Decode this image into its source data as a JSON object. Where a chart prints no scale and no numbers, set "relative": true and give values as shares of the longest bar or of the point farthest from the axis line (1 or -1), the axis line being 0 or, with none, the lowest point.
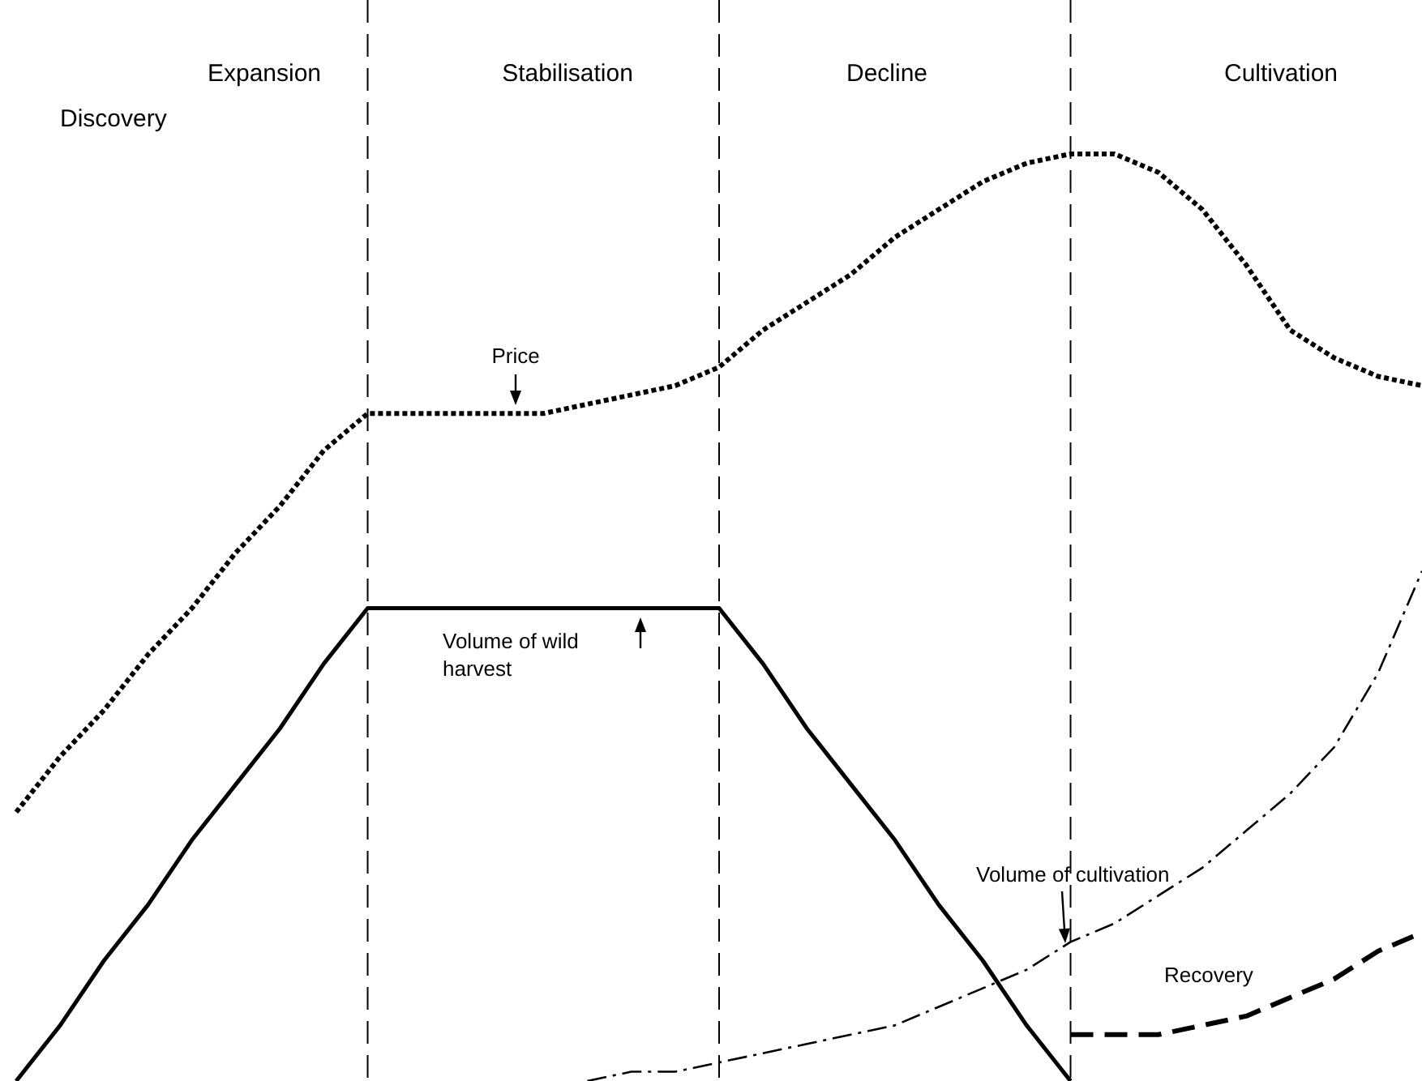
{
  "chart_data": {
    "type": "line",
    "relative": true,
    "grid": "x",
    "categories": [
      null,
      null,
      null,
      null,
      null,
      null,
      null,
      null,
      null,
      null,
      null,
      null,
      null,
      null,
      null,
      null,
      null,
      null,
      null,
      null,
      null,
      null,
      null,
      null,
      null,
      null,
      null,
      null,
      null,
      null,
      null,
      null,
      null
    ],
    "series": [
      {
        "name": "Price",
        "color": "#000000",
        "line_style": "dotted",
        "values": [
          0.29,
          0.35,
          0.4,
          0.46,
          0.51,
          0.57,
          0.62,
          0.68,
          0.72,
          0.72,
          0.72,
          0.72,
          0.72,
          0.73,
          0.74,
          0.75,
          0.77,
          0.81,
          0.84,
          0.87,
          0.91,
          0.94,
          0.97,
          0.99,
          1,
          1,
          0.98,
          0.94,
          0.88,
          0.81,
          0.78,
          0.76,
          0.75
        ]
      },
      {
        "name": "Volume of wild harvest",
        "color": "#000000",
        "line_style": "solid",
        "values": [
          0,
          0.06,
          0.13,
          0.19,
          0.26,
          0.32,
          0.38,
          0.45,
          0.51,
          0.51,
          0.51,
          0.51,
          0.51,
          0.51,
          0.51,
          0.51,
          0.51,
          0.45,
          0.38,
          0.32,
          0.26,
          0.19,
          0.13,
          0.06,
          0,
          null,
          null,
          null,
          null,
          null,
          null,
          null,
          null
        ]
      },
      {
        "name": "Volume of cultivation",
        "color": "#000000",
        "line_style": "dashdot",
        "values": [
          null,
          null,
          null,
          null,
          null,
          null,
          null,
          null,
          null,
          null,
          null,
          null,
          null,
          0,
          0.01,
          0.01,
          0.02,
          0.03,
          0.04,
          0.05,
          0.06,
          0.08,
          0.1,
          0.12,
          0.15,
          0.17,
          0.2,
          0.23,
          0.27,
          0.31,
          0.36,
          0.44,
          0.55
        ]
      },
      {
        "name": "Recovery",
        "color": "#000000",
        "line_style": "dashed",
        "values": [
          null,
          null,
          null,
          null,
          null,
          null,
          null,
          null,
          null,
          null,
          null,
          null,
          null,
          null,
          null,
          null,
          null,
          null,
          null,
          null,
          null,
          null,
          null,
          null,
          0.05,
          0.05,
          0.05,
          0.06,
          0.07,
          0.09,
          0.11,
          0.14,
          0.16
        ]
      }
    ],
    "annotations": [
      "Expansion",
      "Discovery",
      "Stabilisation",
      "Decline",
      "Cultivation"
    ]
  }
}
